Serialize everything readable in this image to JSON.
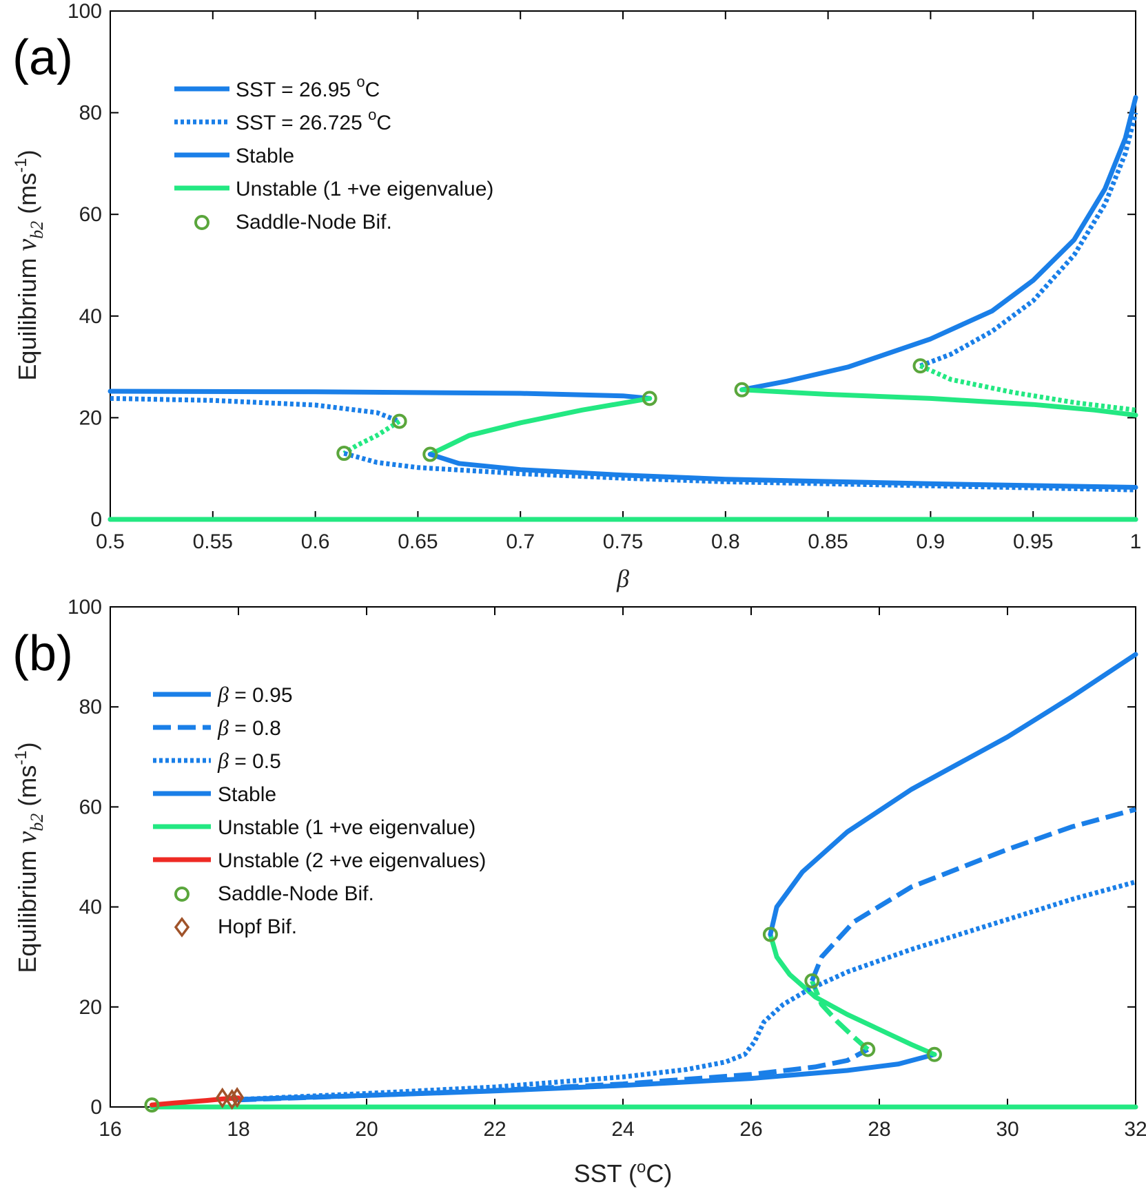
{
  "colors": {
    "stable": "#1a7fe8",
    "unstable1": "#23e882",
    "unstable2": "#ee2a24",
    "saddle_node": "#5aa63c",
    "hopf": "#a0532a",
    "axis": "#000000"
  },
  "chart_data": [
    {
      "id": "a",
      "panel_label": "(a)",
      "type": "line",
      "xlabel": "β",
      "ylabel_parts": [
        "Equilibrium",
        "v",
        "b2",
        "(ms",
        "-1",
        ")"
      ],
      "xlim": [
        0.5,
        1
      ],
      "ylim": [
        0,
        100
      ],
      "xticks": [
        0.5,
        0.55,
        0.6,
        0.65,
        0.7,
        0.75,
        0.8,
        0.85,
        0.9,
        0.95,
        1
      ],
      "xtick_labels": [
        "0.5",
        "0.55",
        "0.6",
        "0.65",
        "0.7",
        "0.75",
        "0.8",
        "0.85",
        "0.9",
        "0.95",
        "1"
      ],
      "yticks": [
        0,
        20,
        40,
        60,
        80,
        100
      ],
      "ytick_labels": [
        "0",
        "20",
        "40",
        "60",
        "80",
        "100"
      ],
      "grid": false,
      "legend_position": "top-left",
      "legend": [
        {
          "style": "solid",
          "color_key": "stable",
          "text": "SST = 26.95 ",
          "sup": "o",
          "after": "C"
        },
        {
          "style": "dotted",
          "color_key": "stable",
          "text": "SST = 26.725 ",
          "sup": "o",
          "after": "C"
        },
        {
          "style": "solid",
          "color_key": "stable",
          "text": "Stable"
        },
        {
          "style": "solid",
          "color_key": "unstable1",
          "text": "Unstable (1 +ve eigenvalue)"
        },
        {
          "style": "circle",
          "color_key": "saddle_node",
          "text": "Saddle-Node Bif."
        }
      ],
      "series": [
        {
          "style": "solid",
          "color_key": "stable",
          "points": [
            [
              0.5,
              25.2
            ],
            [
              0.6,
              25.1
            ],
            [
              0.7,
              24.8
            ],
            [
              0.75,
              24.3
            ],
            [
              0.763,
              23.8
            ]
          ]
        },
        {
          "style": "solid",
          "color_key": "unstable1",
          "points": [
            [
              0.763,
              23.8
            ],
            [
              0.73,
              21.5
            ],
            [
              0.7,
              19
            ],
            [
              0.675,
              16.5
            ],
            [
              0.656,
              12.8
            ]
          ]
        },
        {
          "style": "solid",
          "color_key": "stable",
          "points": [
            [
              0.656,
              12.8
            ],
            [
              0.67,
              11
            ],
            [
              0.7,
              9.8
            ],
            [
              0.75,
              8.7
            ],
            [
              0.8,
              7.9
            ],
            [
              0.9,
              7
            ],
            [
              1,
              6.3
            ]
          ]
        },
        {
          "style": "solid",
          "color_key": "stable",
          "points": [
            [
              0.808,
              25.5
            ],
            [
              0.83,
              27.2
            ],
            [
              0.86,
              30
            ],
            [
              0.9,
              35.5
            ],
            [
              0.93,
              41
            ],
            [
              0.95,
              47
            ],
            [
              0.97,
              55
            ],
            [
              0.985,
              65
            ],
            [
              0.995,
              75
            ],
            [
              1,
              83
            ]
          ]
        },
        {
          "style": "solid",
          "color_key": "unstable1",
          "points": [
            [
              0.808,
              25.5
            ],
            [
              0.85,
              24.6
            ],
            [
              0.9,
              23.8
            ],
            [
              0.95,
              22.6
            ],
            [
              0.98,
              21.5
            ],
            [
              1,
              20.5
            ]
          ]
        },
        {
          "style": "solid",
          "color_key": "stable",
          "points": [
            [
              0.5,
              0
            ],
            [
              1,
              0
            ]
          ]
        },
        {
          "style": "solid",
          "color_key": "unstable1",
          "points": [
            [
              0.5,
              0
            ],
            [
              1,
              0
            ]
          ]
        },
        {
          "style": "dotted",
          "color_key": "stable",
          "points": [
            [
              0.5,
              23.8
            ],
            [
              0.55,
              23.4
            ],
            [
              0.6,
              22.5
            ],
            [
              0.63,
              21
            ],
            [
              0.641,
              19.3
            ]
          ]
        },
        {
          "style": "dotted",
          "color_key": "unstable1",
          "points": [
            [
              0.641,
              19.3
            ],
            [
              0.63,
              16.5
            ],
            [
              0.62,
              14.5
            ],
            [
              0.614,
              13
            ]
          ]
        },
        {
          "style": "dotted",
          "color_key": "stable",
          "points": [
            [
              0.614,
              13
            ],
            [
              0.63,
              11.2
            ],
            [
              0.65,
              10.2
            ],
            [
              0.7,
              9
            ],
            [
              0.75,
              8.1
            ],
            [
              0.8,
              7.4
            ],
            [
              0.9,
              6.6
            ],
            [
              1,
              5.8
            ]
          ]
        },
        {
          "style": "dotted",
          "color_key": "stable",
          "points": [
            [
              0.895,
              30.2
            ],
            [
              0.91,
              32.5
            ],
            [
              0.93,
              37
            ],
            [
              0.95,
              43
            ],
            [
              0.97,
              52
            ],
            [
              0.985,
              62
            ],
            [
              0.995,
              72
            ],
            [
              1,
              80
            ]
          ]
        },
        {
          "style": "dotted",
          "color_key": "unstable1",
          "points": [
            [
              0.895,
              30.2
            ],
            [
              0.91,
              27.5
            ],
            [
              0.94,
              25
            ],
            [
              0.97,
              23
            ],
            [
              1,
              21.5
            ]
          ]
        }
      ],
      "markers": [
        {
          "type": "saddle_node",
          "x": 0.763,
          "y": 23.8
        },
        {
          "type": "saddle_node",
          "x": 0.656,
          "y": 12.8
        },
        {
          "type": "saddle_node",
          "x": 0.641,
          "y": 19.3
        },
        {
          "type": "saddle_node",
          "x": 0.614,
          "y": 13
        },
        {
          "type": "saddle_node",
          "x": 0.808,
          "y": 25.5
        },
        {
          "type": "saddle_node",
          "x": 0.895,
          "y": 30.2
        }
      ]
    },
    {
      "id": "b",
      "panel_label": "(b)",
      "type": "line",
      "xlabel_parts": [
        "SST (",
        "o",
        "C)"
      ],
      "ylabel_parts": [
        "Equilibrium",
        "v",
        "b2",
        "(ms",
        "-1",
        ")"
      ],
      "xlim": [
        16,
        32
      ],
      "ylim": [
        0,
        100
      ],
      "xticks": [
        16,
        18,
        20,
        22,
        24,
        26,
        28,
        30,
        32
      ],
      "xtick_labels": [
        "16",
        "18",
        "20",
        "22",
        "24",
        "26",
        "28",
        "30",
        "32"
      ],
      "yticks": [
        0,
        20,
        40,
        60,
        80,
        100
      ],
      "ytick_labels": [
        "0",
        "20",
        "40",
        "60",
        "80",
        "100"
      ],
      "grid": false,
      "legend_position": "top-left",
      "legend": [
        {
          "style": "solid",
          "color_key": "stable",
          "greek": "β",
          "text": " = 0.95"
        },
        {
          "style": "dashed",
          "color_key": "stable",
          "greek": "β",
          "text": " = 0.8"
        },
        {
          "style": "dotted",
          "color_key": "stable",
          "greek": "β",
          "text": " = 0.5"
        },
        {
          "style": "solid",
          "color_key": "stable",
          "text": "Stable"
        },
        {
          "style": "solid",
          "color_key": "unstable1",
          "text": "Unstable (1 +ve eigenvalue)"
        },
        {
          "style": "solid",
          "color_key": "unstable2",
          "text": "Unstable (2 +ve eigenvalues)"
        },
        {
          "style": "circle",
          "color_key": "saddle_node",
          "text": "Saddle-Node Bif."
        },
        {
          "style": "diamond",
          "color_key": "hopf",
          "text": "Hopf Bif."
        }
      ],
      "series": [
        {
          "style": "solid",
          "color_key": "unstable1",
          "points": [
            [
              16.65,
              0
            ],
            [
              32,
              0
            ]
          ]
        },
        {
          "style": "solid",
          "color_key": "stable",
          "points": [
            [
              18,
              1.5
            ],
            [
              20,
              2.3
            ],
            [
              22,
              3.2
            ],
            [
              24,
              4.3
            ],
            [
              26,
              5.7
            ],
            [
              27.5,
              7.3
            ],
            [
              28.3,
              8.6
            ],
            [
              28.86,
              10.5
            ]
          ]
        },
        {
          "style": "solid",
          "color_key": "unstable1",
          "points": [
            [
              28.86,
              10.5
            ],
            [
              28.5,
              12.5
            ],
            [
              28,
              15.5
            ],
            [
              27.5,
              18.5
            ],
            [
              27,
              22
            ],
            [
              26.6,
              26.5
            ],
            [
              26.4,
              30
            ],
            [
              26.3,
              34.5
            ]
          ]
        },
        {
          "style": "solid",
          "color_key": "stable",
          "points": [
            [
              26.3,
              34.5
            ],
            [
              26.4,
              40
            ],
            [
              26.8,
              47
            ],
            [
              27.5,
              55
            ],
            [
              28.5,
              63.5
            ],
            [
              30,
              74
            ],
            [
              31,
              82
            ],
            [
              32,
              90.5
            ]
          ]
        },
        {
          "style": "dashed",
          "color_key": "stable",
          "points": [
            [
              18,
              1.4
            ],
            [
              20,
              2.3
            ],
            [
              22,
              3.3
            ],
            [
              24,
              4.6
            ],
            [
              26,
              6.5
            ],
            [
              27,
              8
            ],
            [
              27.5,
              9.3
            ],
            [
              27.82,
              11.5
            ]
          ]
        },
        {
          "style": "dashed",
          "color_key": "unstable1",
          "points": [
            [
              27.82,
              11.5
            ],
            [
              27.6,
              14
            ],
            [
              27.35,
              17
            ],
            [
              27.1,
              20.5
            ],
            [
              26.95,
              25.2
            ]
          ]
        },
        {
          "style": "dashed",
          "color_key": "stable",
          "points": [
            [
              26.95,
              25.2
            ],
            [
              27.1,
              30
            ],
            [
              27.6,
              37
            ],
            [
              28.5,
              44
            ],
            [
              30,
              51.5
            ],
            [
              31,
              56
            ],
            [
              32,
              59.5
            ]
          ]
        },
        {
          "style": "dotted",
          "color_key": "stable",
          "points": [
            [
              18,
              1.5
            ],
            [
              20,
              2.7
            ],
            [
              22,
              4
            ],
            [
              24,
              6
            ],
            [
              25,
              7.5
            ],
            [
              25.6,
              9
            ],
            [
              25.9,
              10.5
            ],
            [
              26.05,
              13
            ],
            [
              26.2,
              17
            ],
            [
              26.5,
              20.5
            ],
            [
              26.9,
              23.5
            ],
            [
              27.5,
              27
            ],
            [
              28.5,
              31.5
            ],
            [
              30,
              37.5
            ],
            [
              31,
              41.5
            ],
            [
              32,
              45
            ]
          ]
        },
        {
          "style": "solid",
          "color_key": "unstable2",
          "points": [
            [
              16.65,
              0.4
            ],
            [
              17,
              0.8
            ],
            [
              17.5,
              1.3
            ],
            [
              17.75,
              1.6
            ],
            [
              18,
              1.8
            ]
          ]
        }
      ],
      "markers": [
        {
          "type": "saddle_node",
          "x": 16.65,
          "y": 0.4
        },
        {
          "type": "saddle_node",
          "x": 26.3,
          "y": 34.5
        },
        {
          "type": "saddle_node",
          "x": 26.95,
          "y": 25.2
        },
        {
          "type": "saddle_node",
          "x": 27.82,
          "y": 11.5
        },
        {
          "type": "saddle_node",
          "x": 28.86,
          "y": 10.5
        },
        {
          "type": "hopf",
          "x": 17.75,
          "y": 1.8
        },
        {
          "type": "hopf",
          "x": 17.9,
          "y": 1.5
        },
        {
          "type": "hopf",
          "x": 17.98,
          "y": 1.9
        }
      ]
    }
  ]
}
